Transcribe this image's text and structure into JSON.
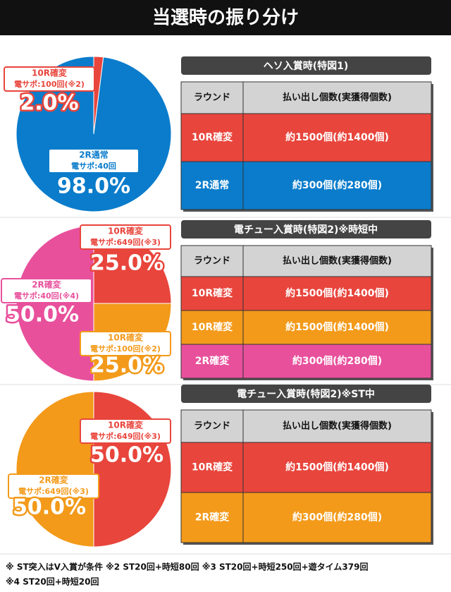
{
  "header": {
    "title": "当選時の振り分け"
  },
  "chart_data": [
    {
      "type": "pie",
      "categories": [
        "10R確変",
        "2R通常"
      ],
      "sublabels": [
        "電サポ:100回(※2)",
        "電サポ:40回"
      ],
      "values": [
        2.0,
        98.0
      ],
      "value_labels": [
        "2.0%",
        "98.0%"
      ],
      "colors": [
        "#e8453c",
        "#0a7ccb"
      ]
    },
    {
      "type": "pie",
      "categories": [
        "10R確変",
        "10R確変",
        "2R確変"
      ],
      "sublabels": [
        "電サポ:649回(※3)",
        "電サポ:100回(※2)",
        "電サポ:40回(※4)"
      ],
      "values": [
        25.0,
        25.0,
        50.0
      ],
      "value_labels": [
        "25.0%",
        "25.0%",
        "50.0%"
      ],
      "colors": [
        "#e8453c",
        "#f39a1a",
        "#e8509c"
      ]
    },
    {
      "type": "pie",
      "categories": [
        "10R確変",
        "2R確変"
      ],
      "sublabels": [
        "電サポ:649回(※3)",
        "電サポ:649回(※3)"
      ],
      "values": [
        50.0,
        50.0
      ],
      "value_labels": [
        "50.0%",
        "50.0%"
      ],
      "colors": [
        "#e8453c",
        "#f39a1a"
      ]
    }
  ],
  "tables": [
    {
      "title": "ヘソ入賞時(特図1)",
      "header": [
        "ラウンド",
        "払い出し個数(実獲得個数)"
      ],
      "rows": [
        [
          "10R確変",
          "約1500個(約1400個)"
        ],
        [
          "2R通常",
          "約300個(約280個)"
        ]
      ],
      "row_colors": [
        "#e8453c",
        "#0a7ccb"
      ]
    },
    {
      "title": "電チュー入賞時(特図2)※時短中",
      "header": [
        "ラウンド",
        "払い出し個数(実獲得個数)"
      ],
      "rows": [
        [
          "10R確変",
          "約1500個(約1400個)"
        ],
        [
          "10R確変",
          "約1500個(約1400個)"
        ],
        [
          "2R確変",
          "約300個(約280個)"
        ]
      ],
      "row_colors": [
        "#e8453c",
        "#f39a1a",
        "#e8509c"
      ]
    },
    {
      "title": "電チュー入賞時(特図2)※ST中",
      "header": [
        "ラウンド",
        "払い出し個数(実獲得個数)"
      ],
      "rows": [
        [
          "10R確変",
          "約1500個(約1400個)"
        ],
        [
          "2R確変",
          "約300個(約280個)"
        ]
      ],
      "row_colors": [
        "#e8453c",
        "#f39a1a"
      ]
    }
  ],
  "footnotes": [
    "※ ST突入はV入賞が条件 ※2 ST20回+時短80回 ※3 ST20回+時短250回+遊タイム379回",
    "※4 ST20回+時短20回"
  ]
}
